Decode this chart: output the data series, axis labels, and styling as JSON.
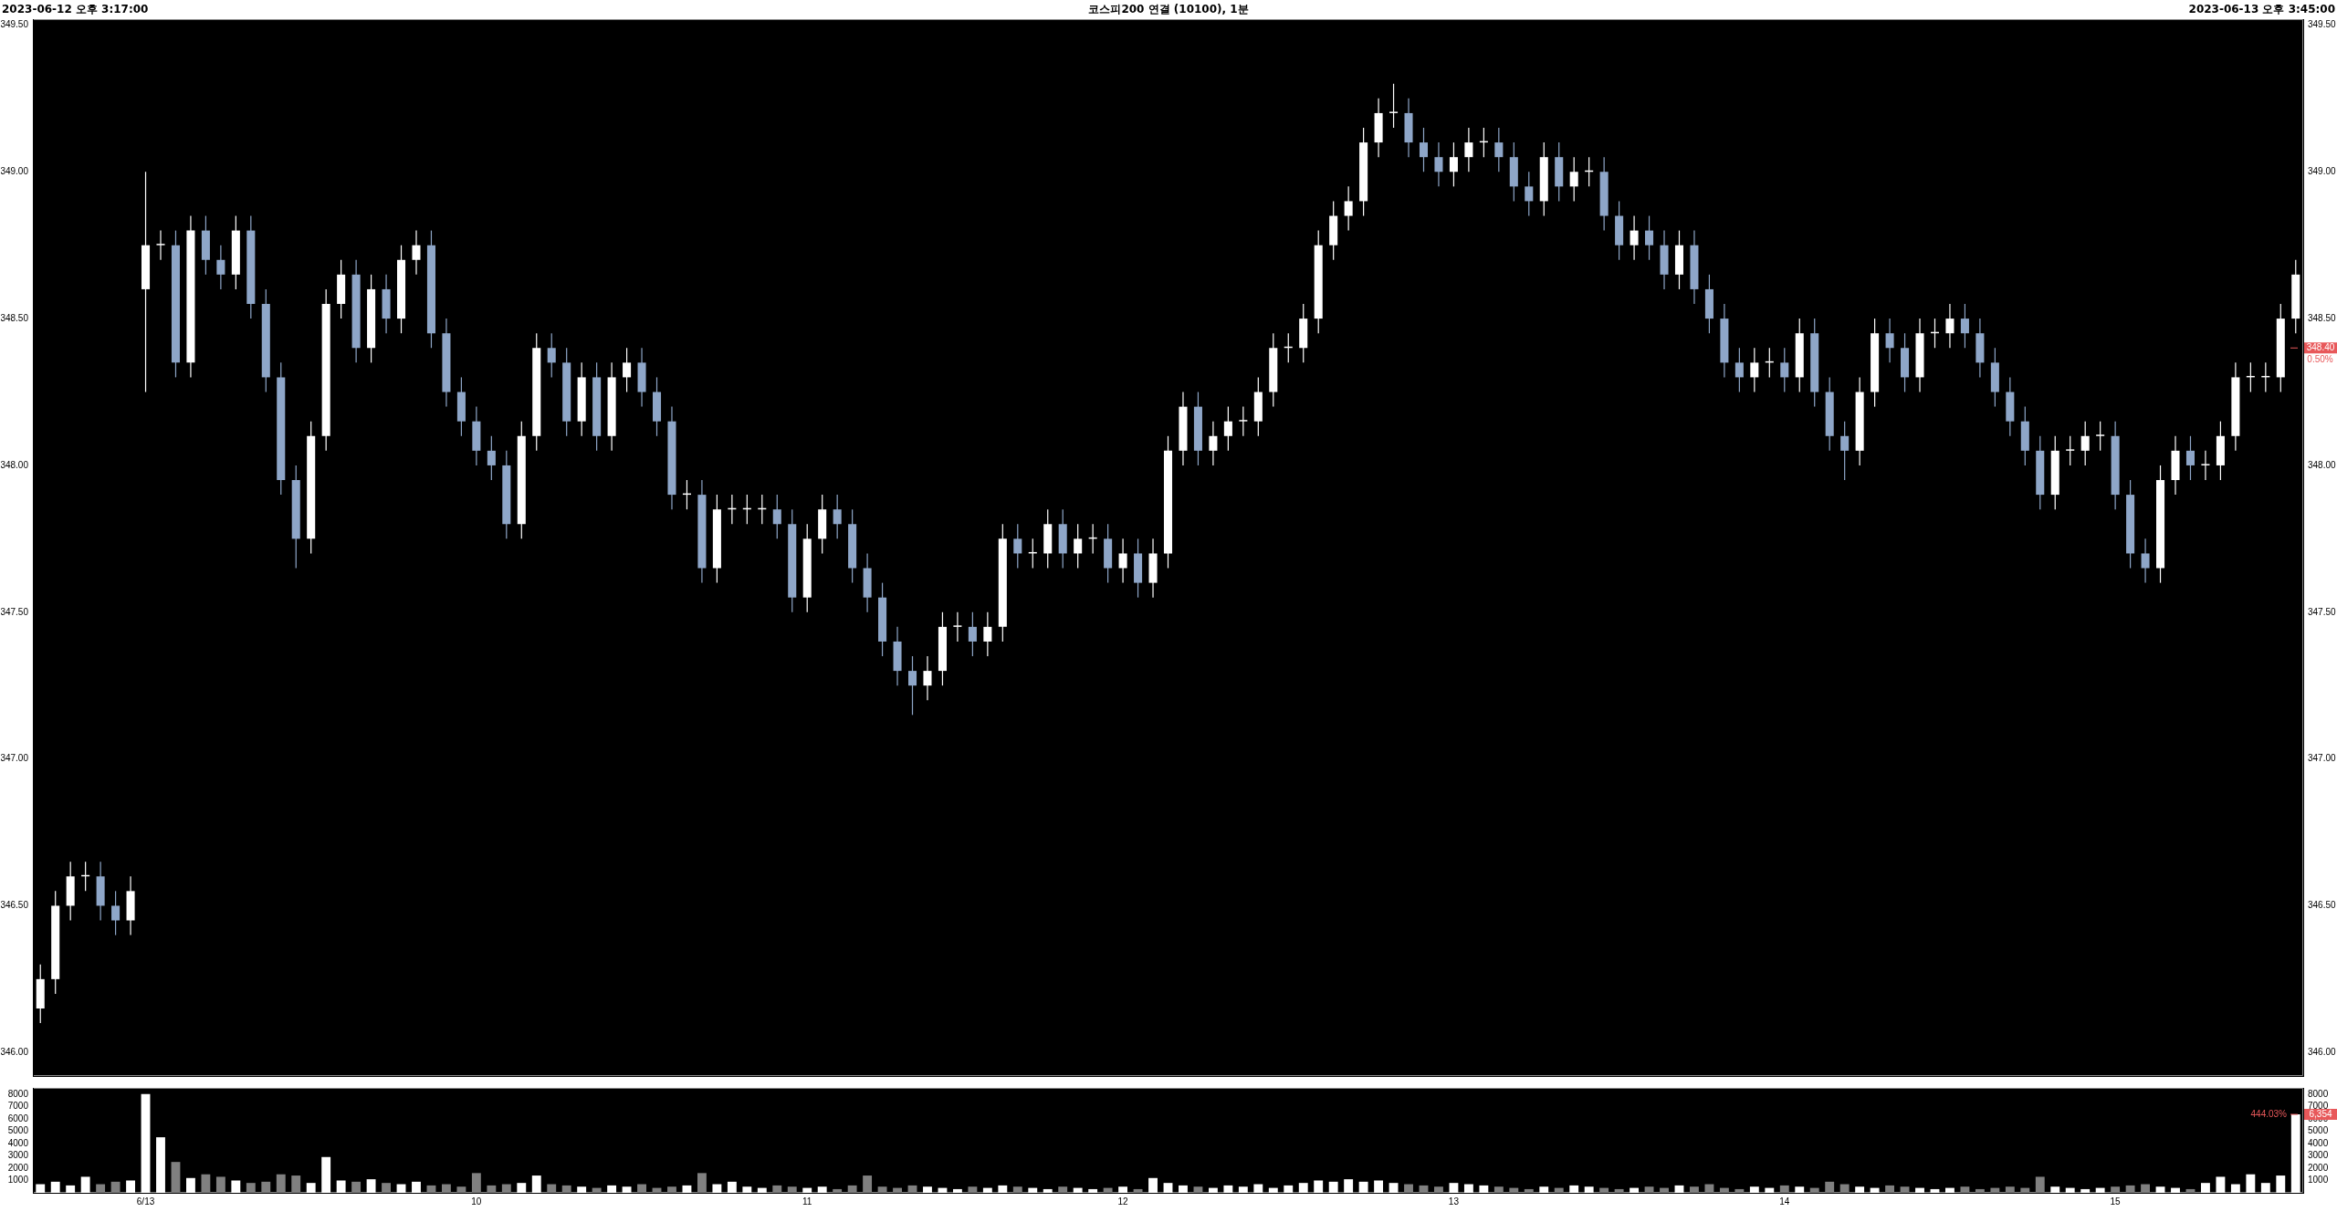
{
  "chart_data": [
    {
      "type": "candlestick",
      "title": "코스피200 연결 (10100), 1분",
      "annotations": [
        "2023-06-12 오후 3:17:00",
        "2023-06-13 오후 3:45:00",
        {
          "text": "0.50%",
          "y": 348.4
        }
      ],
      "categories": [
        null,
        null,
        null,
        null,
        null,
        null,
        null,
        null,
        null,
        null,
        null,
        null,
        null,
        null,
        null,
        null,
        null,
        null,
        null,
        null,
        null,
        null,
        null,
        null,
        null,
        null,
        null,
        null,
        null,
        null,
        null,
        null,
        null,
        null,
        null,
        null,
        null,
        null,
        null,
        null,
        null,
        null,
        null,
        null,
        null,
        null,
        null,
        null,
        null,
        null,
        null,
        null,
        null,
        null,
        null,
        null,
        null,
        null,
        null,
        null,
        null,
        null,
        null,
        null,
        null,
        null,
        null,
        null,
        null,
        null,
        null,
        null,
        null,
        null,
        null,
        null,
        null,
        null,
        null,
        null,
        null,
        null,
        null,
        null,
        null,
        null,
        null,
        null,
        null,
        null,
        null,
        null,
        null,
        null,
        null,
        null,
        null,
        null,
        null,
        null,
        null,
        null,
        null,
        null,
        null,
        null,
        null,
        null,
        null,
        null,
        null,
        null,
        null,
        null,
        null,
        null,
        null,
        null,
        null,
        null,
        null,
        null,
        null,
        null,
        null,
        null,
        null,
        null,
        null,
        null,
        null,
        null,
        null,
        null,
        null,
        null,
        null,
        null,
        null,
        null,
        null,
        null,
        null,
        null,
        null,
        null,
        null,
        null,
        null,
        null,
        null
      ],
      "ohlc": [
        [
          346.15,
          346.3,
          346.1,
          346.25
        ],
        [
          346.25,
          346.55,
          346.2,
          346.5
        ],
        [
          346.5,
          346.65,
          346.45,
          346.6
        ],
        [
          346.6,
          346.65,
          346.55,
          346.6
        ],
        [
          346.6,
          346.65,
          346.45,
          346.5
        ],
        [
          346.5,
          346.55,
          346.4,
          346.45
        ],
        [
          346.45,
          346.6,
          346.4,
          346.55
        ],
        [
          348.6,
          349.0,
          348.25,
          348.75
        ],
        [
          348.75,
          348.8,
          348.7,
          348.75
        ],
        [
          348.75,
          348.8,
          348.3,
          348.35
        ],
        [
          348.35,
          348.85,
          348.3,
          348.8
        ],
        [
          348.8,
          348.85,
          348.65,
          348.7
        ],
        [
          348.7,
          348.75,
          348.6,
          348.65
        ],
        [
          348.65,
          348.85,
          348.6,
          348.8
        ],
        [
          348.8,
          348.85,
          348.5,
          348.55
        ],
        [
          348.55,
          348.6,
          348.25,
          348.3
        ],
        [
          348.3,
          348.35,
          347.9,
          347.95
        ],
        [
          347.95,
          348.0,
          347.65,
          347.75
        ],
        [
          347.75,
          348.15,
          347.7,
          348.1
        ],
        [
          348.1,
          348.6,
          348.05,
          348.55
        ],
        [
          348.55,
          348.7,
          348.5,
          348.65
        ],
        [
          348.65,
          348.7,
          348.35,
          348.4
        ],
        [
          348.4,
          348.65,
          348.35,
          348.6
        ],
        [
          348.6,
          348.65,
          348.45,
          348.5
        ],
        [
          348.5,
          348.75,
          348.45,
          348.7
        ],
        [
          348.7,
          348.8,
          348.65,
          348.75
        ],
        [
          348.75,
          348.8,
          348.4,
          348.45
        ],
        [
          348.45,
          348.5,
          348.2,
          348.25
        ],
        [
          348.25,
          348.3,
          348.1,
          348.15
        ],
        [
          348.15,
          348.2,
          348.0,
          348.05
        ],
        [
          348.05,
          348.1,
          347.95,
          348.0
        ],
        [
          348.0,
          348.05,
          347.75,
          347.8
        ],
        [
          347.8,
          348.15,
          347.75,
          348.1
        ],
        [
          348.1,
          348.45,
          348.05,
          348.4
        ],
        [
          348.4,
          348.45,
          348.3,
          348.35
        ],
        [
          348.35,
          348.4,
          348.1,
          348.15
        ],
        [
          348.15,
          348.35,
          348.1,
          348.3
        ],
        [
          348.3,
          348.35,
          348.05,
          348.1
        ],
        [
          348.1,
          348.35,
          348.05,
          348.3
        ],
        [
          348.3,
          348.4,
          348.25,
          348.35
        ],
        [
          348.35,
          348.4,
          348.2,
          348.25
        ],
        [
          348.25,
          348.3,
          348.1,
          348.15
        ],
        [
          348.15,
          348.2,
          347.85,
          347.9
        ],
        [
          347.9,
          347.95,
          347.85,
          347.9
        ],
        [
          347.9,
          347.95,
          347.6,
          347.65
        ],
        [
          347.65,
          347.9,
          347.6,
          347.85
        ],
        [
          347.85,
          347.9,
          347.8,
          347.85
        ],
        [
          347.85,
          347.9,
          347.8,
          347.85
        ],
        [
          347.85,
          347.9,
          347.8,
          347.85
        ],
        [
          347.85,
          347.9,
          347.75,
          347.8
        ],
        [
          347.8,
          347.85,
          347.5,
          347.55
        ],
        [
          347.55,
          347.8,
          347.5,
          347.75
        ],
        [
          347.75,
          347.9,
          347.7,
          347.85
        ],
        [
          347.85,
          347.9,
          347.75,
          347.8
        ],
        [
          347.8,
          347.85,
          347.6,
          347.65
        ],
        [
          347.65,
          347.7,
          347.5,
          347.55
        ],
        [
          347.55,
          347.6,
          347.35,
          347.4
        ],
        [
          347.4,
          347.45,
          347.25,
          347.3
        ],
        [
          347.3,
          347.35,
          347.15,
          347.25
        ],
        [
          347.25,
          347.35,
          347.2,
          347.3
        ],
        [
          347.3,
          347.5,
          347.25,
          347.45
        ],
        [
          347.45,
          347.5,
          347.4,
          347.45
        ],
        [
          347.45,
          347.5,
          347.35,
          347.4
        ],
        [
          347.4,
          347.5,
          347.35,
          347.45
        ],
        [
          347.45,
          347.8,
          347.4,
          347.75
        ],
        [
          347.75,
          347.8,
          347.65,
          347.7
        ],
        [
          347.7,
          347.75,
          347.65,
          347.7
        ],
        [
          347.7,
          347.85,
          347.65,
          347.8
        ],
        [
          347.8,
          347.85,
          347.65,
          347.7
        ],
        [
          347.7,
          347.8,
          347.65,
          347.75
        ],
        [
          347.75,
          347.8,
          347.7,
          347.75
        ],
        [
          347.75,
          347.8,
          347.6,
          347.65
        ],
        [
          347.65,
          347.75,
          347.6,
          347.7
        ],
        [
          347.7,
          347.75,
          347.55,
          347.6
        ],
        [
          347.6,
          347.75,
          347.55,
          347.7
        ],
        [
          347.7,
          348.1,
          347.65,
          348.05
        ],
        [
          348.05,
          348.25,
          348.0,
          348.2
        ],
        [
          348.2,
          348.25,
          348.0,
          348.05
        ],
        [
          348.05,
          348.15,
          348.0,
          348.1
        ],
        [
          348.1,
          348.2,
          348.05,
          348.15
        ],
        [
          348.15,
          348.2,
          348.1,
          348.15
        ],
        [
          348.15,
          348.3,
          348.1,
          348.25
        ],
        [
          348.25,
          348.45,
          348.2,
          348.4
        ],
        [
          348.4,
          348.45,
          348.35,
          348.4
        ],
        [
          348.4,
          348.55,
          348.35,
          348.5
        ],
        [
          348.5,
          348.8,
          348.45,
          348.75
        ],
        [
          348.75,
          348.9,
          348.7,
          348.85
        ],
        [
          348.85,
          348.95,
          348.8,
          348.9
        ],
        [
          348.9,
          349.15,
          348.85,
          349.1
        ],
        [
          349.1,
          349.25,
          349.05,
          349.2
        ],
        [
          349.2,
          349.3,
          349.15,
          349.2
        ],
        [
          349.2,
          349.25,
          349.05,
          349.1
        ],
        [
          349.1,
          349.15,
          349.0,
          349.05
        ],
        [
          349.05,
          349.1,
          348.95,
          349.0
        ],
        [
          349.0,
          349.1,
          348.95,
          349.05
        ],
        [
          349.05,
          349.15,
          349.0,
          349.1
        ],
        [
          349.1,
          349.15,
          349.05,
          349.1
        ],
        [
          349.1,
          349.15,
          349.0,
          349.05
        ],
        [
          349.05,
          349.1,
          348.9,
          348.95
        ],
        [
          348.95,
          349.0,
          348.85,
          348.9
        ],
        [
          348.9,
          349.1,
          348.85,
          349.05
        ],
        [
          349.05,
          349.1,
          348.9,
          348.95
        ],
        [
          348.95,
          349.05,
          348.9,
          349.0
        ],
        [
          349.0,
          349.05,
          348.95,
          349.0
        ],
        [
          349.0,
          349.05,
          348.8,
          348.85
        ],
        [
          348.85,
          348.9,
          348.7,
          348.75
        ],
        [
          348.75,
          348.85,
          348.7,
          348.8
        ],
        [
          348.8,
          348.85,
          348.7,
          348.75
        ],
        [
          348.75,
          348.8,
          348.6,
          348.65
        ],
        [
          348.65,
          348.8,
          348.6,
          348.75
        ],
        [
          348.75,
          348.8,
          348.55,
          348.6
        ],
        [
          348.6,
          348.65,
          348.45,
          348.5
        ],
        [
          348.5,
          348.55,
          348.3,
          348.35
        ],
        [
          348.35,
          348.4,
          348.25,
          348.3
        ],
        [
          348.3,
          348.4,
          348.25,
          348.35
        ],
        [
          348.35,
          348.4,
          348.3,
          348.35
        ],
        [
          348.35,
          348.4,
          348.25,
          348.3
        ],
        [
          348.3,
          348.5,
          348.25,
          348.45
        ],
        [
          348.45,
          348.5,
          348.2,
          348.25
        ],
        [
          348.25,
          348.3,
          348.05,
          348.1
        ],
        [
          348.1,
          348.15,
          347.95,
          348.05
        ],
        [
          348.05,
          348.3,
          348.0,
          348.25
        ],
        [
          348.25,
          348.5,
          348.2,
          348.45
        ],
        [
          348.45,
          348.5,
          348.35,
          348.4
        ],
        [
          348.4,
          348.45,
          348.25,
          348.3
        ],
        [
          348.3,
          348.5,
          348.25,
          348.45
        ],
        [
          348.45,
          348.5,
          348.4,
          348.45
        ],
        [
          348.45,
          348.55,
          348.4,
          348.5
        ],
        [
          348.5,
          348.55,
          348.4,
          348.45
        ],
        [
          348.45,
          348.5,
          348.3,
          348.35
        ],
        [
          348.35,
          348.4,
          348.2,
          348.25
        ],
        [
          348.25,
          348.3,
          348.1,
          348.15
        ],
        [
          348.15,
          348.2,
          348.0,
          348.05
        ],
        [
          348.05,
          348.1,
          347.85,
          347.9
        ],
        [
          347.9,
          348.1,
          347.85,
          348.05
        ],
        [
          348.05,
          348.1,
          348.0,
          348.05
        ],
        [
          348.05,
          348.15,
          348.0,
          348.1
        ],
        [
          348.1,
          348.15,
          348.05,
          348.1
        ],
        [
          348.1,
          348.15,
          347.85,
          347.9
        ],
        [
          347.9,
          347.95,
          347.65,
          347.7
        ],
        [
          347.7,
          347.75,
          347.6,
          347.65
        ],
        [
          347.65,
          348.0,
          347.6,
          347.95
        ],
        [
          347.95,
          348.1,
          347.9,
          348.05
        ],
        [
          348.05,
          348.1,
          347.95,
          348.0
        ],
        [
          348.0,
          348.05,
          347.95,
          348.0
        ],
        [
          348.0,
          348.15,
          347.95,
          348.1
        ],
        [
          348.1,
          348.35,
          348.05,
          348.3
        ],
        [
          348.3,
          348.35,
          348.25,
          348.3
        ],
        [
          348.3,
          348.35,
          348.25,
          348.3
        ],
        [
          348.3,
          348.55,
          348.25,
          348.5
        ],
        [
          348.5,
          348.7,
          348.45,
          348.65
        ]
      ],
      "colors": [
        "#ffffff",
        "#ffffff",
        "#ffffff",
        "#ffffff",
        "#8ea6c8",
        "#8ea6c8",
        "#ffffff",
        "#ffffff",
        "#ffffff",
        "#8ea6c8",
        "#ffffff",
        "#8ea6c8",
        "#8ea6c8",
        "#ffffff",
        "#8ea6c8",
        "#8ea6c8",
        "#8ea6c8",
        "#8ea6c8",
        "#ffffff",
        "#ffffff",
        "#ffffff",
        "#8ea6c8",
        "#ffffff",
        "#8ea6c8",
        "#ffffff",
        "#ffffff",
        "#8ea6c8",
        "#8ea6c8",
        "#8ea6c8",
        "#8ea6c8",
        "#8ea6c8",
        "#8ea6c8",
        "#ffffff",
        "#ffffff",
        "#8ea6c8",
        "#8ea6c8",
        "#ffffff",
        "#8ea6c8",
        "#ffffff",
        "#ffffff",
        "#8ea6c8",
        "#8ea6c8",
        "#8ea6c8",
        "#ffffff",
        "#8ea6c8",
        "#ffffff",
        "#ffffff",
        "#ffffff",
        "#ffffff",
        "#8ea6c8",
        "#8ea6c8",
        "#ffffff",
        "#ffffff",
        "#8ea6c8",
        "#8ea6c8",
        "#8ea6c8",
        "#8ea6c8",
        "#8ea6c8",
        "#8ea6c8",
        "#ffffff",
        "#ffffff",
        "#ffffff",
        "#8ea6c8",
        "#ffffff",
        "#ffffff",
        "#8ea6c8",
        "#ffffff",
        "#ffffff",
        "#8ea6c8",
        "#ffffff",
        "#ffffff",
        "#8ea6c8",
        "#ffffff",
        "#8ea6c8",
        "#ffffff",
        "#ffffff",
        "#ffffff",
        "#8ea6c8",
        "#ffffff",
        "#ffffff",
        "#ffffff",
        "#ffffff",
        "#ffffff",
        "#ffffff",
        "#ffffff",
        "#ffffff",
        "#ffffff",
        "#ffffff",
        "#ffffff",
        "#ffffff",
        "#ffffff",
        "#8ea6c8",
        "#8ea6c8",
        "#8ea6c8",
        "#ffffff",
        "#ffffff",
        "#ffffff",
        "#8ea6c8",
        "#8ea6c8",
        "#8ea6c8",
        "#ffffff",
        "#8ea6c8",
        "#ffffff",
        "#ffffff",
        "#8ea6c8",
        "#8ea6c8",
        "#ffffff",
        "#8ea6c8",
        "#8ea6c8",
        "#ffffff",
        "#8ea6c8",
        "#8ea6c8",
        "#8ea6c8",
        "#8ea6c8",
        "#ffffff",
        "#ffffff",
        "#8ea6c8",
        "#ffffff",
        "#8ea6c8",
        "#8ea6c8",
        "#8ea6c8",
        "#ffffff",
        "#ffffff",
        "#8ea6c8",
        "#8ea6c8",
        "#ffffff",
        "#ffffff",
        "#ffffff",
        "#8ea6c8",
        "#8ea6c8",
        "#8ea6c8",
        "#8ea6c8",
        "#8ea6c8",
        "#8ea6c8",
        "#ffffff",
        "#ffffff",
        "#ffffff",
        "#ffffff",
        "#8ea6c8",
        "#8ea6c8",
        "#8ea6c8",
        "#ffffff",
        "#ffffff",
        "#8ea6c8",
        "#ffffff",
        "#ffffff",
        "#ffffff",
        "#ffffff",
        "#ffffff",
        "#ffffff",
        "#ffffff"
      ],
      "ylim": [
        345.92,
        349.52
      ],
      "yticks": [
        {
          "value": 346,
          "label": "346.00"
        },
        {
          "value": 346.5,
          "label": "346.50"
        },
        {
          "value": 347,
          "label": "347.00"
        },
        {
          "value": 347.5,
          "label": "347.50"
        },
        {
          "value": 348,
          "label": "348.00"
        },
        {
          "value": 348.5,
          "label": "348.50"
        },
        {
          "value": 349,
          "label": "349.00"
        },
        {
          "value": 349.5,
          "label": "349.50"
        }
      ],
      "y2lim": [
        345.92,
        349.52
      ],
      "y2ticks": [
        {
          "value": 346,
          "label": "346.00"
        },
        {
          "value": 346.5,
          "label": "346.50"
        },
        {
          "value": 347,
          "label": "347.00"
        },
        {
          "value": 347.5,
          "label": "347.50"
        },
        {
          "value": 348,
          "label": "348.00"
        },
        {
          "value": 348.5,
          "label": "348.50"
        },
        {
          "value": 349,
          "label": "349.00"
        },
        {
          "value": 349.5,
          "label": "349.50"
        }
      ],
      "ref_lines": [
        {
          "axis": "y2",
          "value": 348.4,
          "label": "348.40",
          "color": "#e8585a"
        }
      ],
      "tick_labels": "y",
      "legend": false,
      "grid": false
    },
    {
      "type": "bar",
      "annotations": [
        "444.03%"
      ],
      "categories": [
        null,
        null,
        null,
        null,
        null,
        null,
        null,
        "6/13",
        null,
        null,
        null,
        null,
        null,
        null,
        null,
        null,
        null,
        null,
        null,
        null,
        null,
        null,
        null,
        null,
        null,
        null,
        null,
        null,
        null,
        "10",
        null,
        null,
        null,
        null,
        null,
        null,
        null,
        null,
        null,
        null,
        null,
        null,
        null,
        null,
        null,
        null,
        null,
        null,
        null,
        null,
        null,
        "11",
        null,
        null,
        null,
        null,
        null,
        null,
        null,
        null,
        null,
        null,
        null,
        null,
        null,
        null,
        null,
        null,
        null,
        null,
        null,
        null,
        "12",
        null,
        null,
        null,
        null,
        null,
        null,
        null,
        null,
        null,
        null,
        null,
        null,
        null,
        null,
        null,
        null,
        null,
        null,
        null,
        null,
        null,
        "13",
        null,
        null,
        null,
        null,
        null,
        null,
        null,
        null,
        null,
        null,
        null,
        null,
        null,
        null,
        null,
        null,
        null,
        null,
        null,
        null,
        null,
        "14",
        null,
        null,
        null,
        null,
        null,
        null,
        null,
        null,
        null,
        null,
        null,
        null,
        null,
        null,
        null,
        null,
        null,
        null,
        null,
        null,
        null,
        "15",
        null,
        null,
        null,
        null,
        null,
        null,
        null,
        null,
        null,
        null,
        null,
        null
      ],
      "values": [
        700,
        900,
        600,
        1300,
        700,
        900,
        1000,
        8000,
        4500,
        2500,
        1200,
        1500,
        1300,
        1000,
        800,
        900,
        1500,
        1400,
        800,
        2900,
        1000,
        900,
        1100,
        800,
        700,
        900,
        600,
        700,
        500,
        1600,
        600,
        700,
        800,
        1400,
        700,
        600,
        500,
        400,
        600,
        500,
        700,
        400,
        500,
        600,
        1600,
        700,
        900,
        500,
        400,
        600,
        500,
        400,
        500,
        300,
        600,
        1400,
        500,
        400,
        600,
        500,
        400,
        300,
        500,
        400,
        600,
        500,
        400,
        300,
        500,
        400,
        300,
        400,
        500,
        300,
        1200,
        800,
        600,
        500,
        400,
        600,
        500,
        700,
        400,
        600,
        800,
        1000,
        900,
        1100,
        900,
        1000,
        800,
        700,
        600,
        500,
        800,
        700,
        600,
        500,
        400,
        300,
        500,
        400,
        600,
        500,
        400,
        300,
        400,
        500,
        400,
        600,
        500,
        700,
        400,
        300,
        500,
        400,
        600,
        500,
        400,
        900,
        700,
        500,
        400,
        600,
        500,
        400,
        300,
        400,
        500,
        300,
        400,
        500,
        400,
        1300,
        500,
        400,
        300,
        400,
        500,
        600,
        700,
        500,
        400,
        300,
        800,
        1300,
        700,
        1500,
        800,
        1400,
        6354
      ],
      "colors": [
        "#ffffff",
        "#ffffff",
        "#ffffff",
        "#ffffff",
        "#808080",
        "#808080",
        "#ffffff",
        "#ffffff",
        "#ffffff",
        "#808080",
        "#ffffff",
        "#808080",
        "#808080",
        "#ffffff",
        "#808080",
        "#808080",
        "#808080",
        "#808080",
        "#ffffff",
        "#ffffff",
        "#ffffff",
        "#808080",
        "#ffffff",
        "#808080",
        "#ffffff",
        "#ffffff",
        "#808080",
        "#808080",
        "#808080",
        "#808080",
        "#808080",
        "#808080",
        "#ffffff",
        "#ffffff",
        "#808080",
        "#808080",
        "#ffffff",
        "#808080",
        "#ffffff",
        "#ffffff",
        "#808080",
        "#808080",
        "#808080",
        "#ffffff",
        "#808080",
        "#ffffff",
        "#ffffff",
        "#ffffff",
        "#ffffff",
        "#808080",
        "#808080",
        "#ffffff",
        "#ffffff",
        "#808080",
        "#808080",
        "#808080",
        "#808080",
        "#808080",
        "#808080",
        "#ffffff",
        "#ffffff",
        "#ffffff",
        "#808080",
        "#ffffff",
        "#ffffff",
        "#808080",
        "#ffffff",
        "#ffffff",
        "#808080",
        "#ffffff",
        "#ffffff",
        "#808080",
        "#ffffff",
        "#808080",
        "#ffffff",
        "#ffffff",
        "#ffffff",
        "#808080",
        "#ffffff",
        "#ffffff",
        "#ffffff",
        "#ffffff",
        "#ffffff",
        "#ffffff",
        "#ffffff",
        "#ffffff",
        "#ffffff",
        "#ffffff",
        "#ffffff",
        "#ffffff",
        "#ffffff",
        "#808080",
        "#808080",
        "#808080",
        "#ffffff",
        "#ffffff",
        "#ffffff",
        "#808080",
        "#808080",
        "#808080",
        "#ffffff",
        "#808080",
        "#ffffff",
        "#ffffff",
        "#808080",
        "#808080",
        "#ffffff",
        "#808080",
        "#808080",
        "#ffffff",
        "#808080",
        "#808080",
        "#808080",
        "#808080",
        "#ffffff",
        "#ffffff",
        "#808080",
        "#ffffff",
        "#808080",
        "#808080",
        "#808080",
        "#ffffff",
        "#ffffff",
        "#808080",
        "#808080",
        "#ffffff",
        "#ffffff",
        "#ffffff",
        "#808080",
        "#808080",
        "#808080",
        "#808080",
        "#808080",
        "#808080",
        "#ffffff",
        "#ffffff",
        "#ffffff",
        "#ffffff",
        "#808080",
        "#808080",
        "#808080",
        "#ffffff",
        "#ffffff",
        "#808080",
        "#ffffff",
        "#ffffff",
        "#ffffff",
        "#ffffff",
        "#ffffff",
        "#ffffff",
        "#ffffff"
      ],
      "ylim": [
        0,
        8500
      ],
      "yticks": [
        1000,
        2000,
        3000,
        4000,
        5000,
        6000,
        7000,
        8000
      ],
      "y2lim": [
        0,
        8500
      ],
      "y2ticks": [
        1000,
        2000,
        3000,
        4000,
        5000,
        6000,
        7000,
        8000
      ],
      "ref_lines": [
        {
          "axis": "y2",
          "value": 6354,
          "label": "6,354",
          "color": "#e8585a"
        }
      ],
      "legend": false,
      "grid": false
    }
  ]
}
